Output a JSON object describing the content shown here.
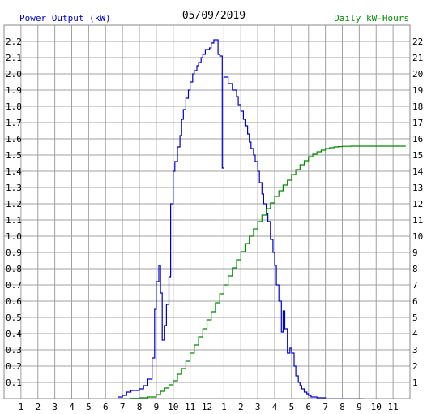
{
  "chart_data": {
    "type": "line",
    "title": "05/09/2019",
    "left_axis_label": "Power Output (kW)",
    "right_axis_label": "Daily kW-Hours",
    "x_tick_labels": [
      "1",
      "2",
      "3",
      "4",
      "5",
      "6",
      "7",
      "8",
      "9",
      "10",
      "11",
      "12",
      "1",
      "2",
      "3",
      "4",
      "5",
      "6",
      "7",
      "8",
      "9",
      "10",
      "11"
    ],
    "left_ticks": [
      "0.1",
      "0.2",
      "0.3",
      "0.4",
      "0.5",
      "0.6",
      "0.7",
      "0.8",
      "0.9",
      "1.0",
      "1.1",
      "1.2",
      "1.3",
      "1.4",
      "1.5",
      "1.6",
      "1.7",
      "1.8",
      "1.9",
      "2.0",
      "2.1",
      "2.2"
    ],
    "right_ticks": [
      "1",
      "2",
      "3",
      "4",
      "5",
      "6",
      "7",
      "8",
      "9",
      "10",
      "11",
      "12",
      "13",
      "14",
      "15",
      "16",
      "17",
      "18",
      "19",
      "20",
      "21",
      "22"
    ],
    "x_range_hours": [
      0,
      24
    ],
    "left_ylim": [
      0,
      2.3
    ],
    "right_ylim": [
      0,
      23
    ],
    "grid": true,
    "colors": {
      "power": "#0000cc",
      "energy": "#008800",
      "left_label": "#0000cc",
      "right_label": "#008800"
    },
    "series": [
      {
        "name": "Power Output (kW)",
        "axis": "left",
        "step": true,
        "x": [
          6.75,
          7.0,
          7.25,
          7.5,
          8.0,
          8.25,
          8.5,
          8.75,
          8.9,
          9.0,
          9.15,
          9.25,
          9.35,
          9.5,
          9.6,
          9.75,
          9.85,
          10.0,
          10.1,
          10.25,
          10.4,
          10.5,
          10.6,
          10.75,
          10.9,
          11.0,
          11.15,
          11.25,
          11.4,
          11.5,
          11.65,
          11.75,
          11.9,
          12.0,
          12.15,
          12.25,
          12.4,
          12.5,
          12.65,
          12.75,
          12.9,
          13.0,
          13.25,
          13.5,
          13.75,
          13.85,
          14.0,
          14.15,
          14.25,
          14.4,
          14.5,
          14.6,
          14.75,
          14.85,
          15.0,
          15.1,
          15.25,
          15.35,
          15.5,
          15.6,
          15.75,
          15.9,
          16.0,
          16.1,
          16.25,
          16.4,
          16.5,
          16.6,
          16.75,
          16.9,
          17.0,
          17.15,
          17.25,
          17.4,
          17.5,
          17.6,
          17.75,
          17.9,
          18.0,
          18.15,
          18.25,
          18.4,
          18.5,
          18.6,
          18.75,
          18.9,
          19.0,
          19.25,
          19.4,
          19.5,
          19.6,
          19.75,
          19.9,
          20.0,
          20.25,
          20.5,
          20.75,
          21.0,
          21.25
        ],
        "y": [
          0.01,
          0.02,
          0.04,
          0.05,
          0.06,
          0.08,
          0.12,
          0.25,
          0.55,
          0.72,
          0.82,
          0.65,
          0.36,
          0.45,
          0.58,
          0.75,
          1.2,
          1.4,
          1.46,
          1.55,
          1.62,
          1.72,
          1.78,
          1.85,
          1.9,
          1.95,
          2.0,
          2.02,
          2.05,
          2.07,
          2.1,
          2.12,
          2.15,
          2.15,
          2.16,
          2.19,
          2.21,
          2.21,
          2.12,
          2.11,
          1.42,
          1.98,
          1.94,
          1.9,
          1.86,
          1.81,
          1.77,
          1.72,
          1.68,
          1.63,
          1.58,
          1.54,
          1.5,
          1.46,
          1.4,
          1.33,
          1.26,
          1.2,
          1.14,
          1.09,
          0.98,
          0.9,
          0.82,
          0.7,
          0.6,
          0.41,
          0.54,
          0.43,
          0.28,
          0.31,
          0.28,
          0.2,
          0.14,
          0.1,
          0.08,
          0.06,
          0.04,
          0.03,
          0.02,
          0.01,
          0.01,
          0.01,
          0.005,
          0.005,
          0.005,
          0.005,
          0,
          0,
          0,
          0,
          0,
          0,
          0,
          0,
          0,
          0,
          0,
          0,
          0
        ]
      },
      {
        "name": "Daily kW-Hours",
        "axis": "right",
        "step": true,
        "x": [
          6.75,
          7.5,
          8.0,
          8.5,
          9.0,
          9.25,
          9.5,
          9.75,
          10.0,
          10.25,
          10.5,
          10.75,
          11.0,
          11.25,
          11.5,
          11.75,
          12.0,
          12.25,
          12.5,
          12.75,
          13.0,
          13.25,
          13.5,
          13.75,
          14.0,
          14.25,
          14.5,
          14.75,
          15.0,
          15.25,
          15.5,
          15.75,
          16.0,
          16.25,
          16.5,
          16.75,
          17.0,
          17.25,
          17.5,
          17.75,
          18.0,
          18.25,
          18.5,
          18.75,
          19.0,
          19.25,
          19.5,
          19.75,
          20.0,
          20.5,
          21.0,
          22.0,
          23.0,
          23.75
        ],
        "y": [
          0,
          0.02,
          0.05,
          0.1,
          0.25,
          0.45,
          0.65,
          0.85,
          1.1,
          1.5,
          1.85,
          2.3,
          2.8,
          3.3,
          3.8,
          4.3,
          4.85,
          5.35,
          5.9,
          6.45,
          7.0,
          7.55,
          8.05,
          8.55,
          9.05,
          9.55,
          10.0,
          10.45,
          10.9,
          11.3,
          11.7,
          12.05,
          12.45,
          12.8,
          13.15,
          13.45,
          13.8,
          14.1,
          14.4,
          14.65,
          14.9,
          15.05,
          15.2,
          15.3,
          15.4,
          15.45,
          15.5,
          15.52,
          15.54,
          15.55,
          15.55,
          15.55,
          15.55,
          15.55
        ]
      }
    ]
  }
}
